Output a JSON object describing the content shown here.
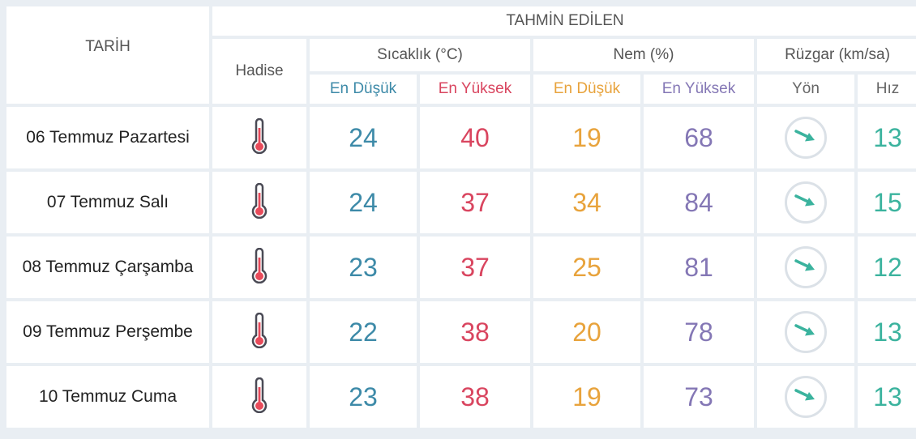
{
  "header": {
    "date_label": "TARİH",
    "forecast_label": "TAHMİN EDİLEN",
    "event_label": "Hadise",
    "temperature_label": "Sıcaklık (°C)",
    "humidity_label": "Nem (%)",
    "wind_label": "Rüzgar (km/sa)",
    "temp_min_label": "En Düşük",
    "temp_max_label": "En Yüksek",
    "hum_min_label": "En Düşük",
    "hum_max_label": "En Yüksek",
    "wind_dir_label": "Yön",
    "wind_speed_label": "Hız"
  },
  "colors": {
    "temp_min": "#3d8aa8",
    "temp_max": "#d9455f",
    "hum_min": "#e8a33c",
    "hum_max": "#8477b5",
    "wind_speed": "#3bb39e"
  },
  "rows": [
    {
      "date": "06 Temmuz Pazartesi",
      "event_icon": "thermometer-icon",
      "temp_min": "24",
      "temp_max": "40",
      "hum_min": "19",
      "hum_max": "68",
      "wind_dir_icon": "wind-arrow-icon",
      "wind_speed": "13"
    },
    {
      "date": "07 Temmuz Salı",
      "event_icon": "thermometer-icon",
      "temp_min": "24",
      "temp_max": "37",
      "hum_min": "34",
      "hum_max": "84",
      "wind_dir_icon": "wind-arrow-icon",
      "wind_speed": "15"
    },
    {
      "date": "08 Temmuz Çarşamba",
      "event_icon": "thermometer-icon",
      "temp_min": "23",
      "temp_max": "37",
      "hum_min": "25",
      "hum_max": "81",
      "wind_dir_icon": "wind-arrow-icon",
      "wind_speed": "12"
    },
    {
      "date": "09 Temmuz Perşembe",
      "event_icon": "thermometer-icon",
      "temp_min": "22",
      "temp_max": "38",
      "hum_min": "20",
      "hum_max": "78",
      "wind_dir_icon": "wind-arrow-icon",
      "wind_speed": "13"
    },
    {
      "date": "10 Temmuz Cuma",
      "event_icon": "thermometer-icon",
      "temp_min": "23",
      "temp_max": "38",
      "hum_min": "19",
      "hum_max": "73",
      "wind_dir_icon": "wind-arrow-icon",
      "wind_speed": "13"
    }
  ]
}
